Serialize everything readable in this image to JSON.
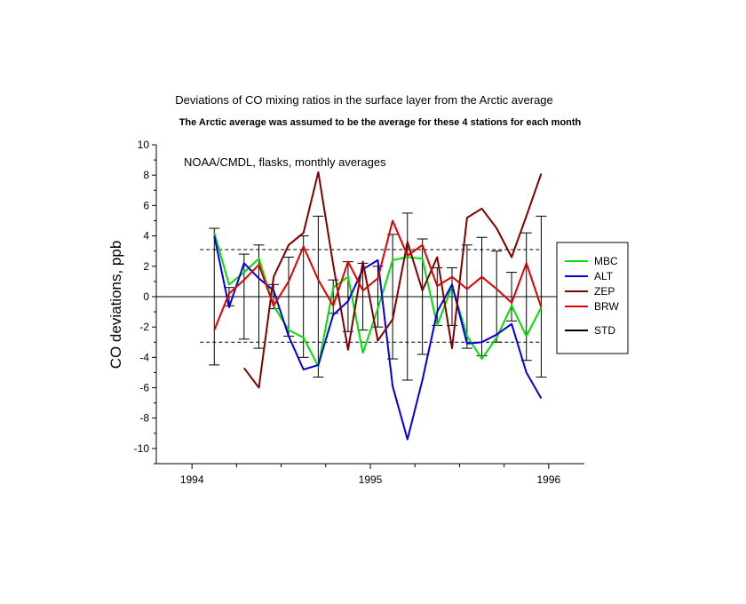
{
  "chart_data": {
    "type": "line",
    "title": "Deviations of CO mixing ratios in the surface layer from the Arctic average",
    "subtitle": "The Arctic average was assumed to be the average for these 4 stations for each month",
    "annotation": "NOAA/CMDL, flasks, monthly averages",
    "ylabel": "CO deviations, ppb",
    "xlabel": "",
    "xlim": [
      1993.8,
      1996.2
    ],
    "ylim": [
      -11,
      10
    ],
    "x_ticks": [
      1994,
      1995,
      1996
    ],
    "y_ticks": [
      10,
      8,
      6,
      4,
      2,
      0,
      -2,
      -4,
      -6,
      -8,
      -10
    ],
    "x_tick_labels": [
      "1994",
      "1995",
      "1996"
    ],
    "y_tick_labels": [
      "10",
      "8",
      "6",
      "4",
      "2",
      "0",
      "-2",
      "-4",
      "-6",
      "-8",
      "-10"
    ],
    "x": [
      1994.125,
      1994.208,
      1994.292,
      1994.375,
      1994.458,
      1994.542,
      1994.625,
      1994.708,
      1994.792,
      1994.875,
      1994.958,
      1995.042,
      1995.125,
      1995.208,
      1995.292,
      1995.375,
      1995.458,
      1995.542,
      1995.625,
      1995.708,
      1995.792,
      1995.875,
      1995.958
    ],
    "reference_lines": [
      3.1,
      -3.0
    ],
    "zero_line": 0,
    "legend_position": "right",
    "series": [
      {
        "name": "MBC",
        "color": "#00e000",
        "values": [
          4.2,
          0.8,
          1.6,
          2.5,
          -0.6,
          -2.2,
          -2.7,
          -4.6,
          0.6,
          1.3,
          -3.7,
          -0.8,
          2.4,
          2.6,
          2.5,
          -1.9,
          0.7,
          -2.6,
          -4.1,
          -2.7,
          -0.6,
          -2.6,
          -0.7
        ]
      },
      {
        "name": "ALT",
        "color": "#0000e0",
        "values": [
          4.0,
          -0.7,
          2.2,
          1.2,
          0.4,
          -2.6,
          -4.8,
          -4.5,
          -1.2,
          -0.3,
          1.8,
          2.4,
          -5.9,
          -9.4,
          -5.5,
          -1.0,
          0.8,
          -3.1,
          -3.0,
          -2.5,
          -1.8,
          -5.0,
          -6.7
        ]
      },
      {
        "name": "ZEP",
        "color": "#800000",
        "values": [
          null,
          null,
          -4.7,
          -6.0,
          1.3,
          3.4,
          4.2,
          8.2,
          2.1,
          -3.5,
          2.3,
          -2.9,
          -1.5,
          3.6,
          0.4,
          2.6,
          -3.4,
          5.2,
          5.8,
          4.5,
          2.6,
          5.3,
          8.1
        ]
      },
      {
        "name": "BRW",
        "color": "#e00000",
        "values": [
          -2.2,
          0.2,
          1.1,
          2.1,
          -0.6,
          1.0,
          3.3,
          1.1,
          -0.6,
          2.3,
          0.4,
          1.2,
          5.0,
          2.7,
          3.4,
          0.7,
          1.3,
          0.5,
          1.3,
          0.5,
          -0.4,
          2.2,
          -0.7
        ]
      }
    ],
    "std_series": {
      "name": "STD",
      "color": "#000000",
      "values": [
        4.5,
        0.6,
        2.8,
        3.4,
        0.8,
        2.6,
        4.0,
        5.3,
        1.1,
        2.3,
        2.2,
        2.0,
        4.1,
        5.5,
        3.8,
        1.9,
        1.9,
        3.4,
        3.9,
        3.0,
        1.6,
        4.2,
        5.3
      ]
    }
  }
}
